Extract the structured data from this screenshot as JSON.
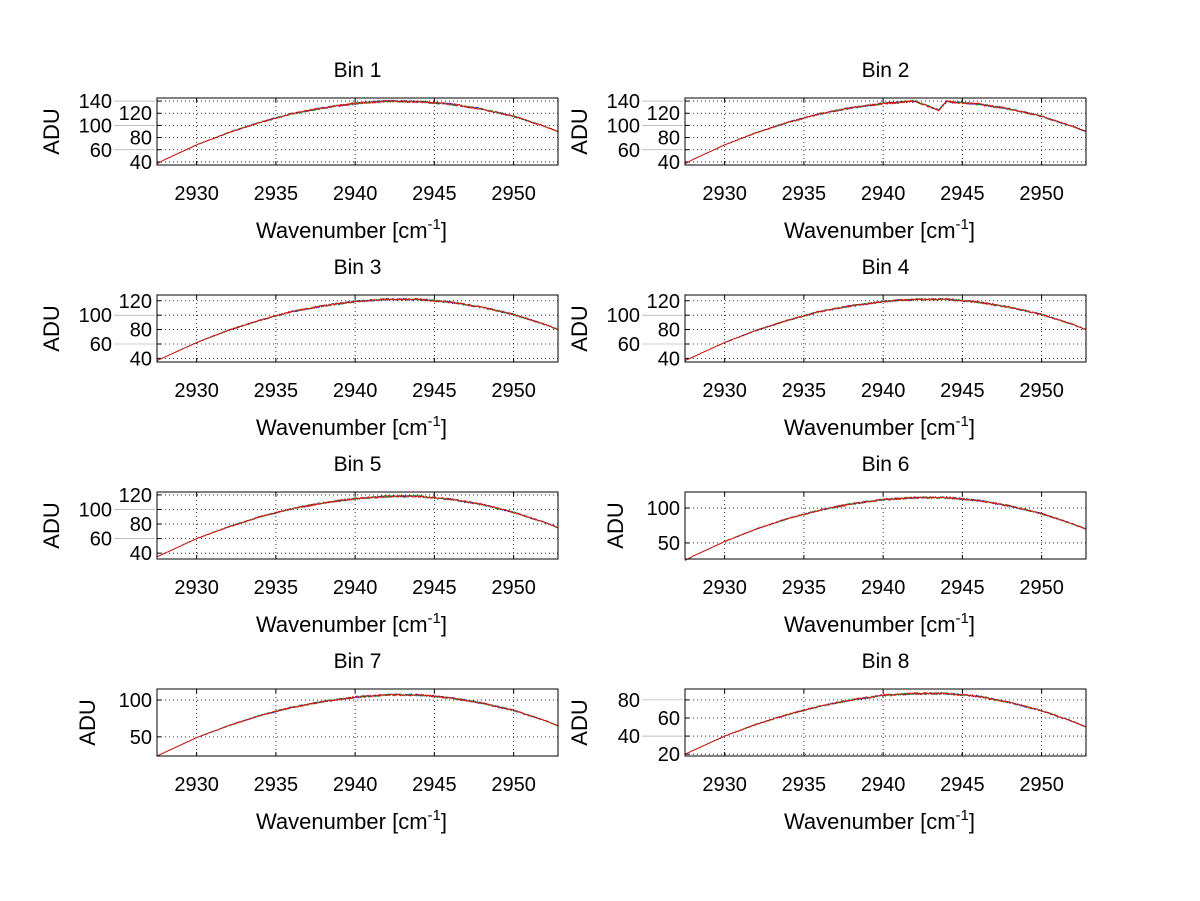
{
  "chart_data": [
    {
      "type": "line",
      "title": "Bin 1",
      "xlabel": "Wavenumber [cm",
      "xlabel_sup": "-1",
      "xlabel_end": "]",
      "ylabel": "ADU",
      "xlim": [
        2927.5,
        2952.8
      ],
      "xticks": [
        2930,
        2935,
        2940,
        2945,
        2950
      ],
      "ylim": [
        35,
        145
      ],
      "yticks": [
        40,
        60,
        80,
        100,
        120,
        140
      ],
      "grid": true,
      "x": [
        2927.5,
        2928,
        2930,
        2932,
        2934,
        2936,
        2938,
        2940,
        2942,
        2944,
        2946,
        2948,
        2950,
        2952,
        2952.8
      ],
      "y": [
        37,
        44,
        68,
        88,
        105,
        119,
        129,
        136,
        140,
        139,
        135,
        127,
        115,
        98,
        90
      ]
    },
    {
      "type": "line",
      "title": "Bin 2",
      "xlabel": "Wavenumber [cm",
      "xlabel_sup": "-1",
      "xlabel_end": "]",
      "ylabel": "ADU",
      "xlim": [
        2927.5,
        2952.8
      ],
      "xticks": [
        2930,
        2935,
        2940,
        2945,
        2950
      ],
      "ylim": [
        35,
        145
      ],
      "yticks": [
        40,
        60,
        80,
        100,
        120,
        140
      ],
      "grid": true,
      "x": [
        2927.5,
        2928,
        2930,
        2932,
        2934,
        2936,
        2938,
        2940,
        2942,
        2943.5,
        2944,
        2946,
        2948,
        2950,
        2952,
        2952.8
      ],
      "y": [
        37,
        44,
        68,
        88,
        105,
        119,
        129,
        136,
        140,
        125,
        139,
        135,
        127,
        115,
        98,
        90
      ]
    },
    {
      "type": "line",
      "title": "Bin 3",
      "xlabel": "Wavenumber [cm",
      "xlabel_sup": "-1",
      "xlabel_end": "]",
      "ylabel": "ADU",
      "xlim": [
        2927.5,
        2952.8
      ],
      "xticks": [
        2930,
        2935,
        2940,
        2945,
        2950
      ],
      "ylim": [
        35,
        128
      ],
      "yticks": [
        40,
        60,
        80,
        100,
        120
      ],
      "grid": true,
      "x": [
        2927.5,
        2928,
        2930,
        2932,
        2934,
        2936,
        2938,
        2940,
        2942,
        2944,
        2946,
        2948,
        2950,
        2952,
        2952.8
      ],
      "y": [
        37,
        42,
        62,
        79,
        93,
        105,
        113,
        119,
        122,
        122,
        118,
        111,
        101,
        87,
        80
      ]
    },
    {
      "type": "line",
      "title": "Bin 4",
      "xlabel": "Wavenumber [cm",
      "xlabel_sup": "-1",
      "xlabel_end": "]",
      "ylabel": "ADU",
      "xlim": [
        2927.5,
        2952.8
      ],
      "xticks": [
        2930,
        2935,
        2940,
        2945,
        2950
      ],
      "ylim": [
        35,
        128
      ],
      "yticks": [
        40,
        60,
        80,
        100,
        120
      ],
      "grid": true,
      "x": [
        2927.5,
        2928,
        2930,
        2932,
        2934,
        2936,
        2938,
        2940,
        2942,
        2944,
        2946,
        2948,
        2950,
        2952,
        2952.8
      ],
      "y": [
        37,
        42,
        62,
        79,
        93,
        105,
        113,
        119,
        122,
        122,
        118,
        111,
        101,
        87,
        80
      ]
    },
    {
      "type": "line",
      "title": "Bin 5",
      "xlabel": "Wavenumber [cm",
      "xlabel_sup": "-1",
      "xlabel_end": "]",
      "ylabel": "ADU",
      "xlim": [
        2927.5,
        2952.8
      ],
      "xticks": [
        2930,
        2935,
        2940,
        2945,
        2950
      ],
      "ylim": [
        32,
        124
      ],
      "yticks": [
        40,
        60,
        80,
        100,
        120
      ],
      "grid": true,
      "x": [
        2927.5,
        2928,
        2930,
        2932,
        2934,
        2936,
        2938,
        2940,
        2942,
        2944,
        2946,
        2948,
        2950,
        2952,
        2952.8
      ],
      "y": [
        35,
        40,
        60,
        76,
        90,
        101,
        109,
        115,
        118,
        118,
        114,
        107,
        96,
        82,
        75
      ]
    },
    {
      "type": "line",
      "title": "Bin 6",
      "xlabel": "Wavenumber [cm",
      "xlabel_sup": "-1",
      "xlabel_end": "]",
      "ylabel": "ADU",
      "xlim": [
        2927.5,
        2952.8
      ],
      "xticks": [
        2930,
        2935,
        2940,
        2945,
        2950
      ],
      "ylim": [
        27,
        123
      ],
      "yticks": [
        50,
        100
      ],
      "grid": true,
      "x": [
        2927.5,
        2928,
        2930,
        2932,
        2934,
        2936,
        2938,
        2940,
        2942,
        2944,
        2946,
        2948,
        2950,
        2952,
        2952.8
      ],
      "y": [
        25,
        31,
        52,
        70,
        85,
        97,
        106,
        112,
        115,
        115,
        111,
        103,
        92,
        77,
        70
      ]
    },
    {
      "type": "line",
      "title": "Bin 7",
      "xlabel": "Wavenumber [cm",
      "xlabel_sup": "-1",
      "xlabel_end": "]",
      "ylabel": "ADU",
      "xlim": [
        2927.5,
        2952.8
      ],
      "xticks": [
        2930,
        2935,
        2940,
        2945,
        2950
      ],
      "ylim": [
        24,
        115
      ],
      "yticks": [
        50,
        100
      ],
      "grid": true,
      "x": [
        2927.5,
        2928,
        2930,
        2932,
        2934,
        2936,
        2938,
        2940,
        2942,
        2944,
        2946,
        2948,
        2950,
        2952,
        2952.8
      ],
      "y": [
        24,
        29,
        49,
        65,
        79,
        90,
        98,
        104,
        107,
        107,
        103,
        96,
        86,
        72,
        65
      ]
    },
    {
      "type": "line",
      "title": "Bin 8",
      "xlabel": "Wavenumber [cm",
      "xlabel_sup": "-1",
      "xlabel_end": "]",
      "ylabel": "ADU",
      "xlim": [
        2927.5,
        2952.8
      ],
      "xticks": [
        2930,
        2935,
        2940,
        2945,
        2950
      ],
      "ylim": [
        18,
        92
      ],
      "yticks": [
        20,
        40,
        60,
        80
      ],
      "grid": true,
      "x": [
        2927.5,
        2928,
        2930,
        2932,
        2934,
        2936,
        2938,
        2940,
        2942,
        2944,
        2946,
        2948,
        2950,
        2952,
        2952.8
      ],
      "y": [
        20,
        24,
        40,
        53,
        64,
        73,
        80,
        85,
        87,
        87,
        84,
        77,
        68,
        56,
        50
      ]
    }
  ],
  "series_colors": [
    "#0000ff",
    "#00a000",
    "#ff0000"
  ]
}
